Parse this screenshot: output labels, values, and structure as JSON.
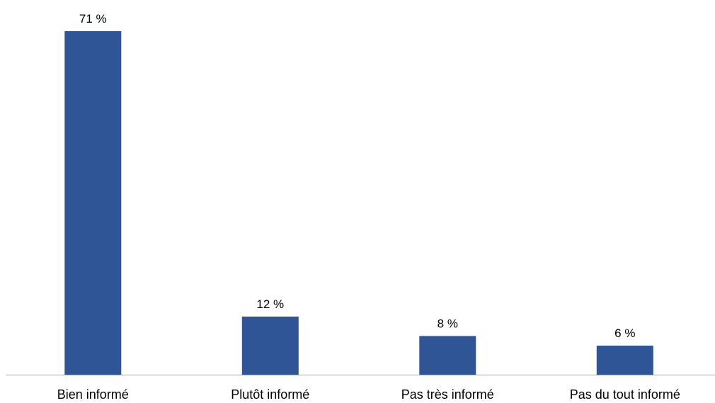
{
  "chart_data": {
    "type": "bar",
    "categories": [
      "Bien informé",
      "Plutôt informé",
      "Pas très informé",
      "Pas du tout informé"
    ],
    "values": [
      71,
      12,
      8,
      6
    ],
    "data_labels": [
      "71 %",
      "12 %",
      "8 %",
      "6 %"
    ],
    "unit": "%",
    "title": "",
    "xlabel": "",
    "ylabel": "",
    "ylim": [
      0,
      71
    ],
    "grid": false,
    "legend": "none",
    "bar_color": "#2F5597",
    "axis_color": "#A6A6A6"
  }
}
